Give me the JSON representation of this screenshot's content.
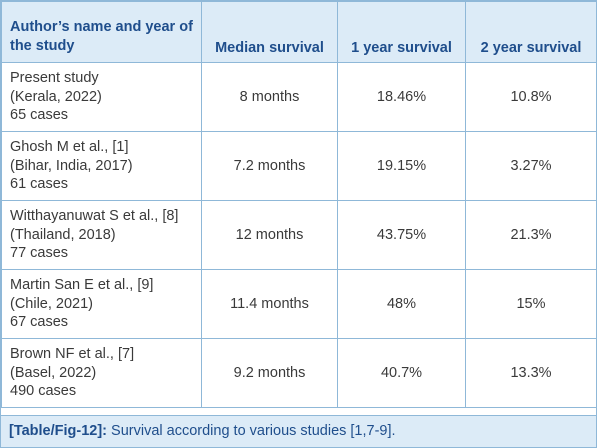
{
  "table": {
    "headers": [
      "Author’s name and year of the study",
      "Median survival",
      "1 year survival",
      "2 year survival"
    ],
    "rows": [
      {
        "study": [
          "Present study",
          "(Kerala, 2022)",
          "65 cases"
        ],
        "median": "8 months",
        "one_year": "18.46%",
        "two_year": "10.8%"
      },
      {
        "study": [
          "Ghosh M et al., [1]",
          "(Bihar, India, 2017)",
          "61 cases"
        ],
        "median": "7.2 months",
        "one_year": "19.15%",
        "two_year": "3.27%"
      },
      {
        "study": [
          "Witthayanuwat S et al., [8]",
          "(Thailand, 2018)",
          "77 cases"
        ],
        "median": "12 months",
        "one_year": "43.75%",
        "two_year": "21.3%"
      },
      {
        "study": [
          "Martin San E et al., [9]",
          "(Chile, 2021)",
          "67 cases"
        ],
        "median": "11.4 months",
        "one_year": "48%",
        "two_year": "15%"
      },
      {
        "study": [
          "Brown NF et al., [7]",
          "(Basel, 2022)",
          "490 cases"
        ],
        "median": "9.2 months",
        "one_year": "40.7%",
        "two_year": "13.3%"
      }
    ]
  },
  "caption": {
    "label": "[Table/Fig-12]:",
    "text": " Survival according to various studies [1,7-9]."
  },
  "colors": {
    "header_bg": "#dcebf7",
    "header_text": "#1f4e8c",
    "border": "#8fb8d8",
    "body_text": "#3a3a3a"
  }
}
